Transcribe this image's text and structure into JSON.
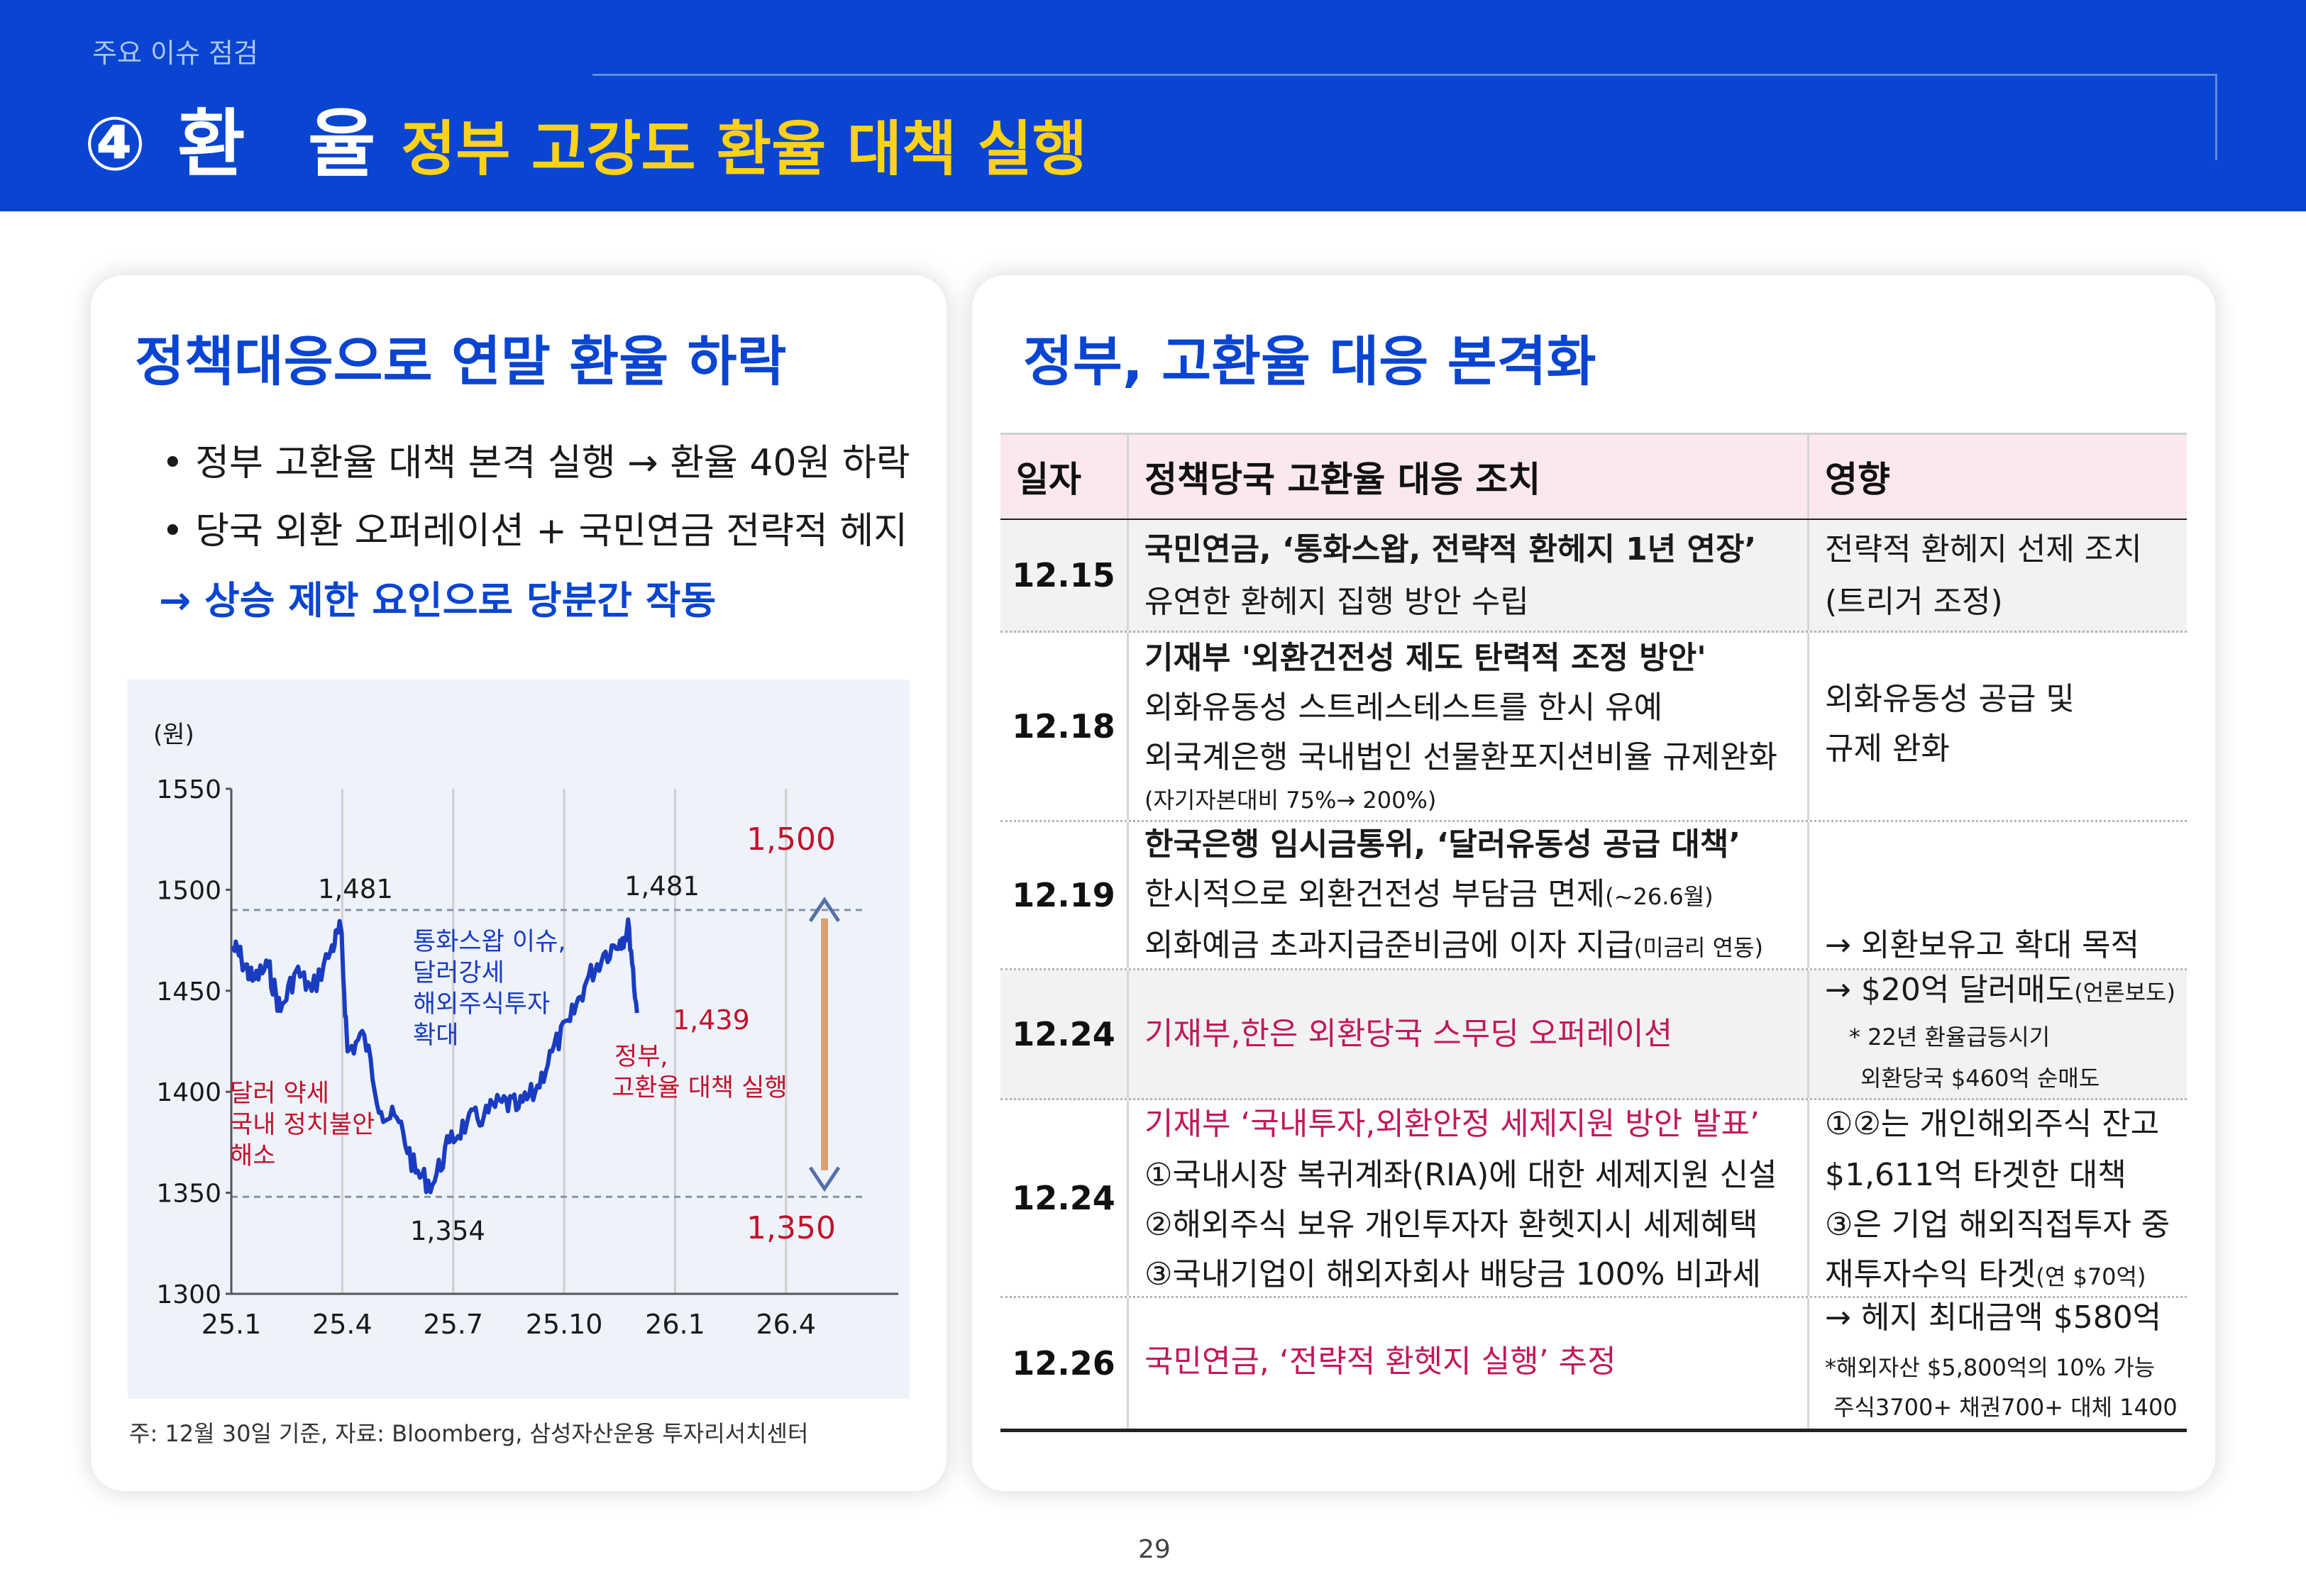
{
  "header": {
    "kicker": "주요 이슈 점검",
    "number": "④",
    "title": "환 율",
    "subtitle": "정부 고강도 환율 대책 실행"
  },
  "left": {
    "title": "정책대응으로 연말 환율 하락",
    "bullets": [
      "• 정부 고환율 대책 본격 실행 → 환율 40원 하락",
      "• 당국 외환 오퍼레이션 + 국민연금 전략적 헤지"
    ],
    "conclusion": "→ 상승 제한 요인으로 당분간 작동",
    "note": "주: 12월 30일 기준, 자료: Bloomberg, 삼성자산운용 투자리서치센터"
  },
  "chart_data": {
    "type": "line",
    "ylabel": "(원)",
    "ylim": [
      1300,
      1550
    ],
    "yticks": [
      "1550",
      "1500",
      "1450",
      "1400",
      "1350",
      "1300"
    ],
    "xticks": [
      "25.1",
      "25.4",
      "25.7",
      "25.10",
      "26.1",
      "26.4"
    ],
    "reference_lines": [
      1490,
      1348
    ],
    "series": [
      {
        "values_approx": [
          {
            "x": "2025-01-02",
            "y": 1472
          },
          {
            "x": "2025-01-10",
            "y": 1466
          },
          {
            "x": "2025-01-20",
            "y": 1455
          },
          {
            "x": "2025-02-03",
            "y": 1462
          },
          {
            "x": "2025-02-14",
            "y": 1440
          },
          {
            "x": "2025-02-28",
            "y": 1460
          },
          {
            "x": "2025-03-14",
            "y": 1450
          },
          {
            "x": "2025-03-31",
            "y": 1470
          },
          {
            "x": "2025-04-09",
            "y": 1481
          },
          {
            "x": "2025-04-15",
            "y": 1420
          },
          {
            "x": "2025-04-30",
            "y": 1428
          },
          {
            "x": "2025-05-15",
            "y": 1390
          },
          {
            "x": "2025-05-31",
            "y": 1385
          },
          {
            "x": "2025-06-15",
            "y": 1360
          },
          {
            "x": "2025-06-30",
            "y": 1354
          },
          {
            "x": "2025-07-15",
            "y": 1375
          },
          {
            "x": "2025-07-31",
            "y": 1385
          },
          {
            "x": "2025-08-15",
            "y": 1388
          },
          {
            "x": "2025-08-31",
            "y": 1395
          },
          {
            "x": "2025-09-15",
            "y": 1392
          },
          {
            "x": "2025-09-30",
            "y": 1400
          },
          {
            "x": "2025-10-15",
            "y": 1420
          },
          {
            "x": "2025-10-31",
            "y": 1435
          },
          {
            "x": "2025-11-15",
            "y": 1455
          },
          {
            "x": "2025-11-30",
            "y": 1468
          },
          {
            "x": "2025-12-15",
            "y": 1475
          },
          {
            "x": "2025-12-23",
            "y": 1481
          },
          {
            "x": "2025-12-30",
            "y": 1439
          }
        ]
      }
    ],
    "labels": {
      "high_left": "1,481",
      "high_right": "1,481",
      "low": "1,354",
      "last": "1,439",
      "upper_bound": "1,500",
      "lower_bound": "1,350"
    },
    "annotations": {
      "swap": [
        "통화스왑 이슈,",
        "달러강세",
        "해외주식투자",
        "확대"
      ],
      "weak_dollar": [
        "달러 약세",
        "국내 정치불안",
        "해소"
      ],
      "gov": [
        "정부,",
        "고환율 대책 실행"
      ]
    },
    "colors": {
      "line": "#1a3cc0",
      "arrow": "#d9a070",
      "arrow_head": "#5570a8",
      "red": "#c2122b"
    }
  },
  "right": {
    "title": "정부, 고환율 대응 본격화",
    "table": {
      "headers": [
        "일자",
        "정책당국 고환율 대응 조치",
        "영향"
      ],
      "rows": [
        {
          "date": "12.15",
          "lines": [
            "국민연금, ‘통화스왑, 전략적 환헤지 1년 연장’",
            "유연한 환헤지 집행 방안 수립"
          ],
          "effect": [
            "전략적 환헤지 선제 조치",
            "(트리거 조정)"
          ]
        },
        {
          "date": "12.18",
          "lines": [
            "기재부 '외환건전성 제도 탄력적 조정 방안'",
            "외화유동성 스트레스테스트를 한시 유예",
            "외국계은행 국내법인 선물환포지션비율 규제완화",
            "(자기자본대비 75%→ 200%)"
          ],
          "effect": [
            "외화유동성 공급 및",
            "규제 완화"
          ]
        },
        {
          "date": "12.19",
          "lines": [
            "한국은행 임시금통위, ‘달러유동성 공급 대책’",
            "한시적으로 외환건전성 부담금 면제",
            "(~26.6월)",
            "외화예금 초과지급준비금에 이자 지급",
            "(미금리 연동)"
          ],
          "effect": [
            "→ 외환보유고 확대 목적"
          ]
        },
        {
          "date": "12.24",
          "lines": [
            "기재부,한은 외환당국 스무딩 오퍼레이션"
          ],
          "effect": [
            "→ $20억 달러매도",
            "(언론보도)",
            "* 22년 환율급등시기",
            "외환당국 $460억 순매도"
          ]
        },
        {
          "date": "12.24",
          "lines": [
            "기재부 ‘국내투자,외환안정 세제지원 방안 발표’",
            "①국내시장 복귀계좌(RIA)에 대한 세제지원 신설",
            "②해외주식 보유 개인투자자 환헷지시 세제혜택",
            "③국내기업이 해외자회사 배당금 100% 비과세"
          ],
          "effect": [
            "①②는 개인해외주식 잔고",
            "$1,611억 타겟한 대책",
            "③은 기업 해외직접투자 중",
            "재투자수익 타겟",
            "(연 $70억)"
          ]
        },
        {
          "date": "12.26",
          "lines": [
            "국민연금, ‘전략적 환헷지 실행’ 추정"
          ],
          "effect": [
            "→ 헤지 최대금액  $580억",
            "*해외자산 $5,800억의 10% 가능",
            "주식3700+ 채권700+ 대체 1400"
          ]
        }
      ]
    }
  },
  "footer": {
    "page": "29"
  }
}
